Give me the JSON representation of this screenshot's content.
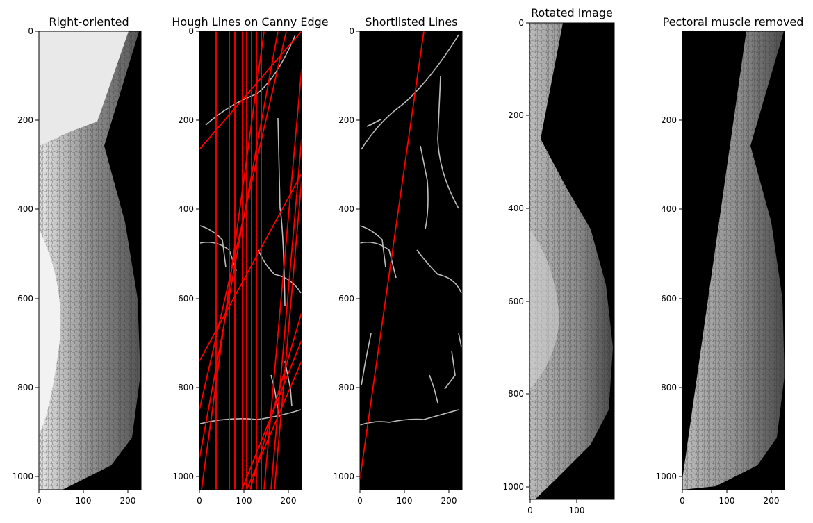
{
  "figure": {
    "panels": [
      {
        "id": "right-oriented",
        "title": "Right-oriented",
        "xticks": [
          0,
          100,
          200
        ],
        "yticks": [
          0,
          200,
          400,
          600,
          800,
          1000
        ],
        "xlim": [
          0,
          230
        ],
        "ylim": [
          1030,
          0
        ]
      },
      {
        "id": "hough-lines",
        "title": "Hough Lines on Canny Edge",
        "xticks": [
          0,
          100,
          200
        ],
        "yticks": [
          0,
          200,
          400,
          600,
          800,
          1000
        ],
        "xlim": [
          0,
          230
        ],
        "ylim": [
          1030,
          0
        ],
        "line_color": "#ff0000"
      },
      {
        "id": "shortlisted-lines",
        "title": "Shortlisted Lines",
        "xticks": [
          0,
          100,
          200
        ],
        "yticks": [
          0,
          200,
          400,
          600,
          800,
          1000
        ],
        "xlim": [
          0,
          230
        ],
        "ylim": [
          1030,
          0
        ],
        "line_color": "#ff0000"
      },
      {
        "id": "rotated-image",
        "title": "Rotated Image",
        "xticks": [
          0,
          100
        ],
        "yticks": [
          0,
          200,
          400,
          600,
          800,
          1000
        ],
        "xlim": [
          0,
          180
        ],
        "ylim": [
          1020,
          0
        ]
      },
      {
        "id": "pectoral-removed",
        "title": "Pectoral muscle removed",
        "xticks": [
          0,
          100,
          200
        ],
        "yticks": [
          200,
          400,
          600,
          800,
          1000
        ],
        "xlim": [
          0,
          230
        ],
        "ylim": [
          1030,
          0
        ]
      }
    ]
  }
}
